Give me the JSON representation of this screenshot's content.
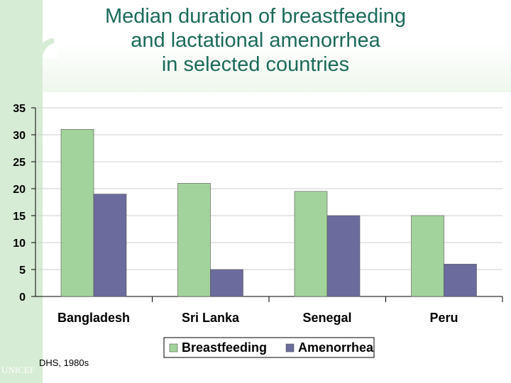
{
  "title_lines": [
    "Median duration of breastfeeding",
    "and lactational amenorrhea",
    "in selected countries"
  ],
  "source_note": "DHS, 1980s",
  "watermark": "UNICEF",
  "colors": {
    "breastfeeding": "#a3d39c",
    "amenorrhea": "#6b6b9e",
    "title": "#1a6a5a",
    "background_band": "#d6ecd4"
  },
  "chart_data": {
    "type": "bar",
    "title": "Median duration of breastfeeding and lactational amenorrhea in selected countries",
    "xlabel": "",
    "ylabel": "",
    "categories": [
      "Bangladesh",
      "Sri Lanka",
      "Senegal",
      "Peru"
    ],
    "series": [
      {
        "name": "Breastfeeding",
        "values": [
          31,
          21,
          19.5,
          15
        ]
      },
      {
        "name": "Amenorrhea",
        "values": [
          19,
          5,
          15,
          6
        ]
      }
    ],
    "ylim": [
      0,
      35
    ],
    "yticks": [
      0,
      5,
      10,
      15,
      20,
      25,
      30,
      35
    ],
    "grid": true,
    "legend": "bottom"
  }
}
